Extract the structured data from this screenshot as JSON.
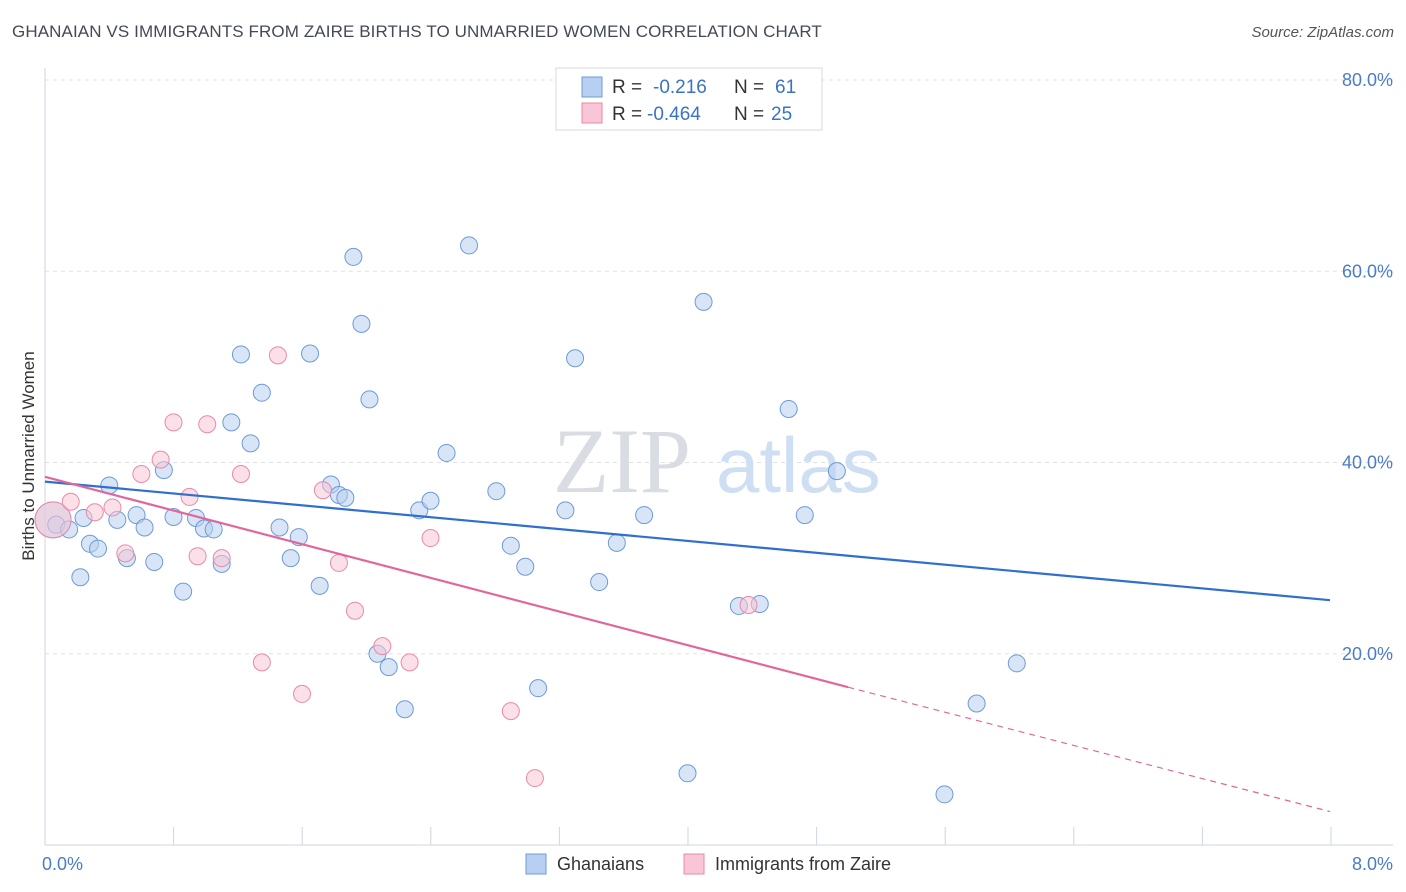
{
  "title": "GHANAIAN VS IMMIGRANTS FROM ZAIRE BIRTHS TO UNMARRIED WOMEN CORRELATION CHART",
  "source": "Source: ZipAtlas.com",
  "watermark": {
    "zip": "ZIP",
    "atlas": "atlas"
  },
  "colors": {
    "blue_fill": "#b7d0f1",
    "blue_stroke": "#6c9bd8",
    "blue_line": "#2f6fcf",
    "pink_fill": "#f8c6d6",
    "pink_stroke": "#e88aa9",
    "pink_line": "#e0679a",
    "axis_text": "#4a7cc9",
    "grid": "#dde3ea"
  },
  "legend_top": [
    {
      "r_label": "R =",
      "r_value": "-0.216",
      "n_label": "N =",
      "n_value": "61",
      "color": "blue"
    },
    {
      "r_label": "R =",
      "r_value": "-0.464",
      "n_label": "N =",
      "n_value": "25",
      "color": "pink"
    }
  ],
  "chart_data": {
    "type": "scatter",
    "title": "GHANAIAN VS IMMIGRANTS FROM ZAIRE BIRTHS TO UNMARRIED WOMEN CORRELATION CHART",
    "xlabel": "",
    "ylabel": "Births to Unmarried Women",
    "xlim": [
      0,
      8
    ],
    "ylim": [
      0,
      80
    ],
    "x_tick_labels": [
      "0.0%",
      "8.0%"
    ],
    "y_tick_labels": [
      "20.0%",
      "40.0%",
      "60.0%",
      "80.0%"
    ],
    "y_ticks": [
      20,
      40,
      60,
      80
    ],
    "grid": true,
    "legend_position": "bottom",
    "series": [
      {
        "name": "Ghanaians",
        "color": "blue",
        "points": [
          [
            0.05,
            34.0
          ],
          [
            0.07,
            33.5
          ],
          [
            0.15,
            33.0
          ],
          [
            0.22,
            28.0
          ],
          [
            0.28,
            31.5
          ],
          [
            0.33,
            31.0
          ],
          [
            0.4,
            37.6
          ],
          [
            0.45,
            34.0
          ],
          [
            0.51,
            30.0
          ],
          [
            0.57,
            34.5
          ],
          [
            0.62,
            33.2
          ],
          [
            0.68,
            29.6
          ],
          [
            0.74,
            39.2
          ],
          [
            0.8,
            34.3
          ],
          [
            0.86,
            26.5
          ],
          [
            0.94,
            34.2
          ],
          [
            0.99,
            33.1
          ],
          [
            1.05,
            33.0
          ],
          [
            1.1,
            29.4
          ],
          [
            1.16,
            44.2
          ],
          [
            1.22,
            51.3
          ],
          [
            1.28,
            42.0
          ],
          [
            1.35,
            47.3
          ],
          [
            1.46,
            33.2
          ],
          [
            1.53,
            30.0
          ],
          [
            1.58,
            32.2
          ],
          [
            1.65,
            51.4
          ],
          [
            1.71,
            27.1
          ],
          [
            1.78,
            37.7
          ],
          [
            1.83,
            36.6
          ],
          [
            1.87,
            36.3
          ],
          [
            1.92,
            61.5
          ],
          [
            1.97,
            54.5
          ],
          [
            2.02,
            46.6
          ],
          [
            2.07,
            20.0
          ],
          [
            2.14,
            18.6
          ],
          [
            2.24,
            14.2
          ],
          [
            2.33,
            35.0
          ],
          [
            2.4,
            36.0
          ],
          [
            2.5,
            41.0
          ],
          [
            2.64,
            62.7
          ],
          [
            2.81,
            37.0
          ],
          [
            2.9,
            31.3
          ],
          [
            2.99,
            29.1
          ],
          [
            3.07,
            16.4
          ],
          [
            3.24,
            35.0
          ],
          [
            3.3,
            50.9
          ],
          [
            3.45,
            27.5
          ],
          [
            3.56,
            31.6
          ],
          [
            3.73,
            34.5
          ],
          [
            4.0,
            7.5
          ],
          [
            4.1,
            56.8
          ],
          [
            4.32,
            25.0
          ],
          [
            4.45,
            25.2
          ],
          [
            4.63,
            45.6
          ],
          [
            4.73,
            34.5
          ],
          [
            4.93,
            39.1
          ],
          [
            5.6,
            5.3
          ],
          [
            5.8,
            14.8
          ],
          [
            6.05,
            19.0
          ],
          [
            0.24,
            34.2
          ]
        ]
      },
      {
        "name": "Immigrants from Zaire",
        "color": "pink",
        "points": [
          [
            0.05,
            34.0
          ],
          [
            0.16,
            35.9
          ],
          [
            0.31,
            34.8
          ],
          [
            0.42,
            35.3
          ],
          [
            0.5,
            30.5
          ],
          [
            0.6,
            38.8
          ],
          [
            0.72,
            40.3
          ],
          [
            0.8,
            44.2
          ],
          [
            0.9,
            36.4
          ],
          [
            1.01,
            44.0
          ],
          [
            1.1,
            30.0
          ],
          [
            1.22,
            38.8
          ],
          [
            1.35,
            19.1
          ],
          [
            1.45,
            51.2
          ],
          [
            1.6,
            15.8
          ],
          [
            1.73,
            37.1
          ],
          [
            1.83,
            29.5
          ],
          [
            1.93,
            24.5
          ],
          [
            2.1,
            20.8
          ],
          [
            2.27,
            19.1
          ],
          [
            2.4,
            32.1
          ],
          [
            2.9,
            14.0
          ],
          [
            3.05,
            7.0
          ],
          [
            4.38,
            25.1
          ],
          [
            0.95,
            30.2
          ]
        ]
      }
    ],
    "trendlines": [
      {
        "series": "Ghanaians",
        "x": [
          0,
          8
        ],
        "y": [
          38.0,
          25.6
        ]
      },
      {
        "series": "Immigrants from Zaire",
        "x": [
          0,
          5.0
        ],
        "y": [
          38.5,
          16.5
        ],
        "dashed_extension_to": [
          8,
          3.5
        ]
      }
    ]
  }
}
